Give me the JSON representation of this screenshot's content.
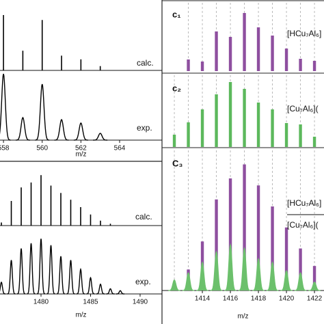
{
  "chart_data": [
    {
      "type": "spectrum",
      "xlabel": "m/z",
      "xlim": [
        557.82,
        566.19
      ],
      "xticks": [
        558,
        560,
        562,
        564
      ],
      "ylim": [
        0,
        100
      ],
      "series": [
        {
          "name": "calc.",
          "color": "#000000",
          "shape": "stick",
          "x": [
            558,
            559,
            560,
            561,
            562,
            563
          ],
          "values": [
            90,
            32,
            82,
            24,
            18,
            7
          ]
        },
        {
          "name": "exp.",
          "color": "#000000",
          "shape": "peak",
          "x": [
            558,
            559,
            560,
            561,
            562,
            563
          ],
          "values": [
            97,
            33,
            82,
            30,
            25,
            10
          ]
        }
      ]
    },
    {
      "type": "spectrum",
      "xlabel": "m/z",
      "xlim": [
        1475.86,
        1492.21
      ],
      "xticks": [
        1480,
        1485,
        1490
      ],
      "ylim": [
        0,
        100
      ],
      "series": [
        {
          "name": "calc.",
          "color": "#000000",
          "shape": "stick",
          "x": [
            1476,
            1477,
            1478,
            1479,
            1480,
            1481,
            1482,
            1483,
            1484,
            1485,
            1486,
            1487
          ],
          "values": [
            5,
            40,
            62,
            70,
            82,
            65,
            53,
            42,
            30,
            18,
            8,
            3
          ]
        },
        {
          "name": "exp.",
          "color": "#000000",
          "shape": "peak",
          "x": [
            1476,
            1477,
            1478,
            1479,
            1480,
            1481,
            1482,
            1483,
            1484,
            1485,
            1486,
            1487,
            1488
          ],
          "values": [
            18,
            52,
            70,
            78,
            85,
            75,
            58,
            52,
            38,
            25,
            15,
            8,
            5
          ]
        }
      ]
    },
    {
      "type": "stick",
      "label": "c₁",
      "xlim": [
        1411.12,
        1422.68
      ],
      "ylim": [
        0,
        100
      ],
      "series": [
        {
          "name": "[HCu₇Al₆]",
          "color": "#8e4f9f",
          "shape": "stick",
          "x": [
            1413,
            1414,
            1415,
            1416,
            1417,
            1418,
            1419,
            1420,
            1421,
            1422
          ],
          "values": [
            17,
            14,
            58,
            50,
            85,
            64,
            52,
            33,
            18,
            15
          ]
        }
      ]
    },
    {
      "type": "stick",
      "label": "c₂",
      "xlim": [
        1411.12,
        1422.68
      ],
      "ylim": [
        0,
        100
      ],
      "series": [
        {
          "name": "[Cu₇Al₆](",
          "color": "#5cb85c",
          "shape": "stick",
          "x": [
            1412,
            1413,
            1414,
            1415,
            1416,
            1417,
            1418,
            1419,
            1420,
            1421,
            1422
          ],
          "values": [
            18,
            36,
            55,
            77,
            95,
            85,
            65,
            55,
            35,
            33,
            15
          ]
        }
      ]
    },
    {
      "type": "stick",
      "label": "C₃",
      "xlabel": "m/z",
      "xlim": [
        1411.12,
        1422.68
      ],
      "xticks": [
        1414,
        1416,
        1418,
        1420,
        1422
      ],
      "ylim": [
        0,
        200
      ],
      "series": [
        {
          "name": "[HCu₇Al₆]",
          "color": "#8e4f9f",
          "shape": "stick",
          "x": [
            1412,
            1413,
            1414,
            1415,
            1416,
            1417,
            1418,
            1419,
            1420,
            1421,
            1422
          ],
          "values": [
            5,
            30,
            70,
            130,
            160,
            180,
            150,
            120,
            90,
            60,
            35
          ]
        },
        {
          "name": "[Cu₇Al₆](",
          "color": "#6cc06c",
          "shape": "peak",
          "x": [
            1412,
            1413,
            1414,
            1415,
            1416,
            1417,
            1418,
            1419,
            1420,
            1421,
            1422
          ],
          "values": [
            15,
            25,
            40,
            55,
            65,
            60,
            45,
            40,
            28,
            25,
            12
          ]
        }
      ]
    }
  ]
}
